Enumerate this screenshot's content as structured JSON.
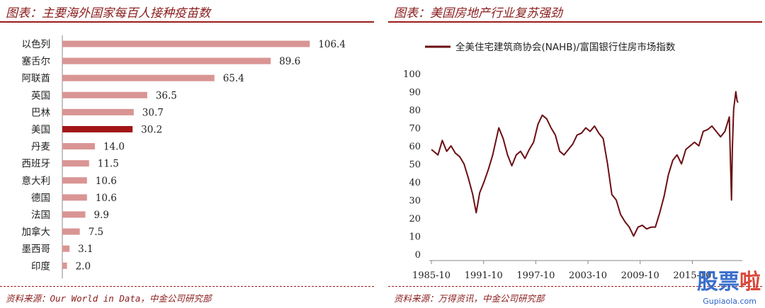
{
  "left": {
    "title": "图表：主要海外国家每百人接种疫苗数",
    "source": "资料来源：Our World in Data，中金公司研究部",
    "chart_data": {
      "type": "bar",
      "orientation": "horizontal",
      "categories": [
        "以色列",
        "塞舌尔",
        "阿联酋",
        "英国",
        "巴林",
        "美国",
        "丹麦",
        "西班牙",
        "意大利",
        "德国",
        "法国",
        "加拿大",
        "墨西哥",
        "印度"
      ],
      "values": [
        106.4,
        89.6,
        65.4,
        36.5,
        30.7,
        30.2,
        14.0,
        11.5,
        10.6,
        10.6,
        9.9,
        7.5,
        3.1,
        2.0
      ],
      "value_labels": [
        "106.4",
        "89.6",
        "65.4",
        "36.5",
        "30.7",
        "30.2",
        "14.0",
        "11.5",
        "10.6",
        "10.6",
        "9.9",
        "7.5",
        "3.1",
        "2.0"
      ],
      "highlight_index": 5,
      "xlim": [
        0,
        120
      ],
      "xticks": [
        "0",
        "20",
        "40",
        "60",
        "80",
        "100",
        "120%"
      ],
      "colors": {
        "bar": "#d99594",
        "highlight": "#a31515"
      }
    }
  },
  "right": {
    "title": "图表：美国房地产行业复苏强劲",
    "source": "资料来源：万得资讯，中金公司研究部",
    "chart_data": {
      "type": "line",
      "series": [
        {
          "name": "全美住宅建筑商协会(NAHB)/富国银行住房市场指数",
          "color": "#6b0f14",
          "x": [
            1985.75,
            1986.5,
            1987.0,
            1987.5,
            1988.0,
            1988.5,
            1989.0,
            1989.5,
            1990.0,
            1990.5,
            1990.9,
            1991.3,
            1991.8,
            1992.3,
            1992.8,
            1993.5,
            1994.0,
            1994.5,
            1995.0,
            1995.5,
            1996.0,
            1996.5,
            1997.0,
            1997.5,
            1998.0,
            1998.5,
            1999.0,
            1999.5,
            2000.0,
            2000.5,
            2001.0,
            2001.5,
            2002.0,
            2002.5,
            2003.0,
            2003.5,
            2004.0,
            2004.5,
            2005.0,
            2005.5,
            2006.0,
            2006.5,
            2007.0,
            2007.5,
            2008.0,
            2008.5,
            2009.0,
            2009.5,
            2010.0,
            2010.5,
            2011.0,
            2011.5,
            2012.0,
            2012.5,
            2013.0,
            2013.5,
            2014.0,
            2014.5,
            2015.0,
            2015.5,
            2016.0,
            2016.5,
            2017.0,
            2017.5,
            2018.0,
            2018.5,
            2019.0,
            2019.5,
            2020.0,
            2020.25,
            2020.35,
            2020.5,
            2020.75,
            2020.9,
            2021.0
          ],
          "y": [
            58,
            55,
            63,
            57,
            60,
            56,
            54,
            50,
            42,
            33,
            23,
            34,
            40,
            47,
            55,
            70,
            64,
            55,
            49,
            55,
            57,
            53,
            58,
            62,
            72,
            77,
            75,
            70,
            66,
            57,
            55,
            58,
            61,
            66,
            67,
            70,
            68,
            71,
            67,
            64,
            50,
            33,
            30,
            22,
            18,
            15,
            10,
            15,
            16,
            14,
            15,
            15,
            23,
            32,
            44,
            52,
            55,
            50,
            58,
            60,
            62,
            60,
            68,
            69,
            71,
            68,
            65,
            68,
            76,
            30,
            58,
            80,
            90,
            85,
            84
          ]
        }
      ],
      "ylim": [
        0,
        100
      ],
      "yticks": [
        "0",
        "10",
        "20",
        "30",
        "40",
        "50",
        "60",
        "70",
        "80",
        "90",
        "100"
      ],
      "xlim": [
        1985.5,
        2021.5
      ],
      "xticks": [
        "1985-10",
        "1991-10",
        "1997-10",
        "2003-10",
        "2009-10",
        "2015-10"
      ],
      "xtick_positions": [
        1985.75,
        1991.75,
        1997.75,
        2003.75,
        2009.75,
        2015.75
      ]
    }
  },
  "watermark": {
    "main": "股票",
    "accent": "啦",
    "sub": "Gupiaola.com"
  }
}
